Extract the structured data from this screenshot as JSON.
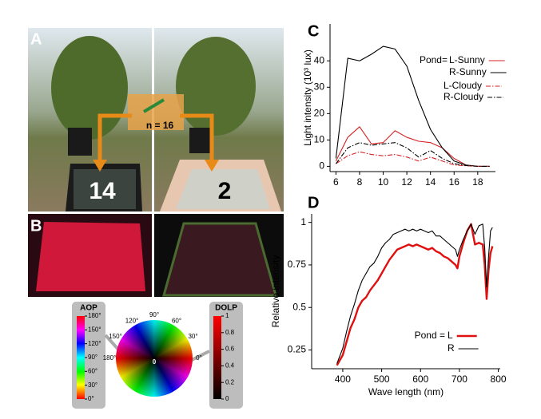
{
  "figure": {
    "panel_a": {
      "label": "A",
      "left_count": "14",
      "right_count": "2",
      "n_label": "n = 16"
    },
    "panel_b": {
      "label": "B"
    },
    "aop": {
      "title": "AOP",
      "ticks": [
        {
          "value": 180,
          "label": "180°"
        },
        {
          "value": 150,
          "label": "150°"
        },
        {
          "value": 120,
          "label": "120°"
        },
        {
          "value": 90,
          "label": "90°"
        },
        {
          "value": 60,
          "label": "60°"
        },
        {
          "value": 30,
          "label": "30°"
        },
        {
          "value": 0,
          "label": "0°"
        }
      ]
    },
    "wheel": {
      "angles": [
        {
          "value": 90,
          "label": "90°"
        },
        {
          "value": 60,
          "label": "60°"
        },
        {
          "value": 30,
          "label": "30°"
        },
        {
          "value": 0,
          "label": "0°"
        },
        {
          "value": 120,
          "label": "120°"
        },
        {
          "value": 150,
          "label": "150°"
        },
        {
          "value": 180,
          "label": "180°"
        }
      ],
      "center_label": 0
    },
    "dolp": {
      "title": "DOLP",
      "ticks": [
        1,
        0.8,
        0.6,
        0.4,
        0.2,
        0
      ]
    }
  },
  "chart_data": [
    {
      "type": "line",
      "title": "C",
      "ylabel": "Light intensity (10³ lux)",
      "x": [
        6,
        7,
        8,
        9,
        10,
        11,
        12,
        13,
        14,
        15,
        16,
        17,
        18,
        19
      ],
      "xlim": [
        5.5,
        19.5
      ],
      "xticks": [
        6,
        8,
        10,
        12,
        14,
        16,
        18
      ],
      "ylim": [
        -2,
        54
      ],
      "yticks": [
        0,
        10,
        20,
        30,
        40
      ],
      "legend_title": "Pond=",
      "series": [
        {
          "name": "L-Sunny",
          "color": "#d62020",
          "linestyle": "solid",
          "values": [
            2,
            11,
            15,
            8.5,
            9,
            13.5,
            11,
            9.5,
            9,
            7,
            3,
            0.5,
            0,
            0
          ]
        },
        {
          "name": "R-Sunny",
          "color": "#000000",
          "linestyle": "solid",
          "values": [
            3,
            41,
            40,
            42.5,
            45.5,
            44.5,
            38,
            25,
            14,
            7,
            2,
            0.5,
            0,
            0
          ]
        },
        {
          "name": "L-Cloudy",
          "color": "#d62020",
          "linestyle": "dashdot",
          "values": [
            1,
            4,
            5.5,
            4.5,
            4,
            4.5,
            3.5,
            2,
            3.5,
            2,
            0.5,
            0.2,
            0,
            0
          ]
        },
        {
          "name": "R-Cloudy",
          "color": "#000000",
          "linestyle": "dashdot",
          "values": [
            1,
            7,
            9,
            8,
            8.5,
            9,
            7,
            3.5,
            6,
            3,
            1,
            0.3,
            0,
            0
          ]
        }
      ]
    },
    {
      "type": "line",
      "title": "D",
      "xlabel": "Wave length (nm)",
      "ylabel": "Relative intensity",
      "x": [
        385,
        390,
        400,
        410,
        420,
        430,
        440,
        450,
        460,
        470,
        480,
        490,
        500,
        510,
        520,
        530,
        540,
        550,
        560,
        570,
        580,
        590,
        600,
        610,
        620,
        630,
        640,
        650,
        660,
        670,
        680,
        690,
        695,
        700,
        710,
        720,
        730,
        740,
        750,
        760,
        765,
        770,
        775,
        780,
        785
      ],
      "xlim": [
        320,
        805
      ],
      "xticks": [
        400,
        500,
        600,
        700,
        800
      ],
      "ylim": [
        0.14,
        1.05
      ],
      "yticks": [
        0.25,
        0.5,
        0.75,
        1
      ],
      "legend_title": "Pond =",
      "series": [
        {
          "name": "L",
          "color": "#e01010",
          "linestyle": "bold",
          "values": [
            0.16,
            0.18,
            0.22,
            0.3,
            0.38,
            0.43,
            0.5,
            0.54,
            0.56,
            0.6,
            0.63,
            0.66,
            0.7,
            0.74,
            0.78,
            0.81,
            0.84,
            0.85,
            0.86,
            0.87,
            0.86,
            0.87,
            0.86,
            0.85,
            0.84,
            0.85,
            0.83,
            0.82,
            0.8,
            0.79,
            0.77,
            0.75,
            0.73,
            0.8,
            0.88,
            0.95,
            0.99,
            0.87,
            0.88,
            0.87,
            0.75,
            0.55,
            0.72,
            0.82,
            0.86
          ]
        },
        {
          "name": "R",
          "color": "#000000",
          "linestyle": "solid",
          "values": [
            0.17,
            0.2,
            0.26,
            0.36,
            0.45,
            0.52,
            0.6,
            0.66,
            0.7,
            0.74,
            0.76,
            0.8,
            0.85,
            0.88,
            0.9,
            0.93,
            0.94,
            0.95,
            0.96,
            0.95,
            0.96,
            0.95,
            0.96,
            0.95,
            0.94,
            0.95,
            0.92,
            0.92,
            0.9,
            0.88,
            0.86,
            0.84,
            0.8,
            0.84,
            0.9,
            0.95,
            0.99,
            0.93,
            0.98,
            0.99,
            0.85,
            0.62,
            0.8,
            0.95,
            0.97
          ]
        }
      ]
    }
  ]
}
